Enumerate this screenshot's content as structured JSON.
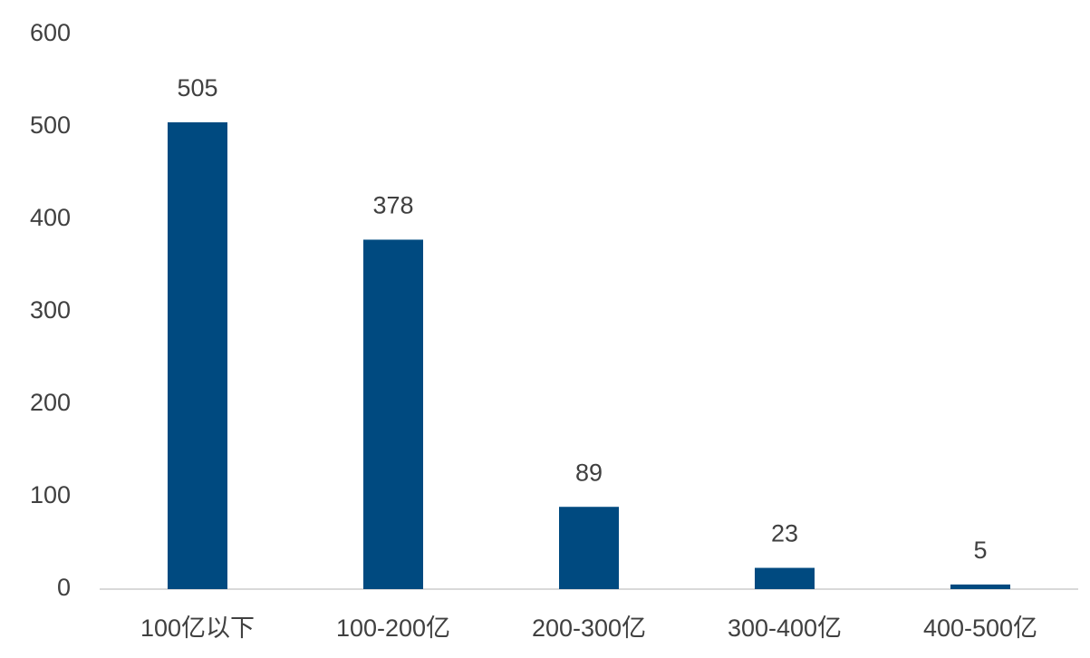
{
  "chart_data": {
    "type": "bar",
    "categories": [
      "100亿以下",
      "100-200亿",
      "200-300亿",
      "300-400亿",
      "400-500亿"
    ],
    "values": [
      505,
      378,
      89,
      23,
      5
    ],
    "color": "#004a80",
    "ylim": [
      0,
      600
    ],
    "yticks": [
      0,
      100,
      200,
      300,
      400,
      500,
      600
    ],
    "grid": false
  }
}
